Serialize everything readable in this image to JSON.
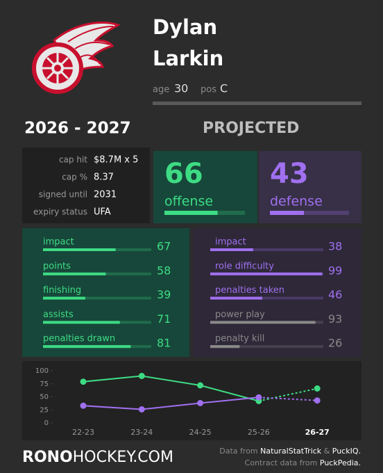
{
  "header": {
    "first_name": "Dylan",
    "last_name": "Larkin",
    "age_label": "age",
    "age": 30,
    "pos_label": "pos",
    "pos": "C"
  },
  "season": "2026 - 2027",
  "status": "PROJECTED",
  "contract": {
    "rows": [
      [
        "cap hit",
        "$8.7M x 5"
      ],
      [
        "cap %",
        "8.37"
      ],
      [
        "signed until",
        "2031"
      ],
      [
        "expiry status",
        "UFA"
      ]
    ]
  },
  "summary": {
    "offense": {
      "value": 66,
      "label": "offense",
      "color": "#3ddc84"
    },
    "defense": {
      "value": 43,
      "label": "defense",
      "color": "#a070f0"
    }
  },
  "offense_metrics": [
    {
      "label": "impact",
      "value": 67,
      "color": "#3ddc84"
    },
    {
      "label": "points",
      "value": 58,
      "color": "#3ddc84"
    },
    {
      "label": "finishing",
      "value": 39,
      "color": "#3ddc84"
    },
    {
      "label": "assists",
      "value": 71,
      "color": "#3ddc84"
    },
    {
      "label": "penalties drawn",
      "value": 81,
      "color": "#3ddc84"
    }
  ],
  "defense_metrics": [
    {
      "label": "impact",
      "value": 38,
      "color": "#a070f0"
    },
    {
      "label": "role difficulty",
      "value": 99,
      "color": "#a070f0"
    },
    {
      "label": "penalties taken",
      "value": 46,
      "color": "#a070f0"
    },
    {
      "label": "power play",
      "value": 93,
      "color": "#8a8a8a"
    },
    {
      "label": "penalty kill",
      "value": 26,
      "color": "#8a8a8a"
    }
  ],
  "chart_data": {
    "type": "line",
    "categories": [
      "22-23",
      "23-24",
      "24-25",
      "25-26",
      "26-27"
    ],
    "series": [
      {
        "name": "offense",
        "color": "#3ddc84",
        "values": [
          79,
          90,
          72,
          42,
          66
        ]
      },
      {
        "name": "defense",
        "color": "#a070f0",
        "values": [
          33,
          26,
          38,
          49,
          43
        ]
      }
    ],
    "ylim": [
      0,
      100
    ],
    "yticks": [
      0,
      25,
      50,
      75,
      100
    ]
  },
  "footer": {
    "brand_bold": "RONO",
    "brand_rest": "HOCKEY.COM",
    "credit_line1": [
      "Data from",
      "NaturalStatTrick",
      "&",
      "PuckIQ."
    ],
    "credit_line2": [
      "Contract data from",
      "PuckPedia."
    ]
  }
}
